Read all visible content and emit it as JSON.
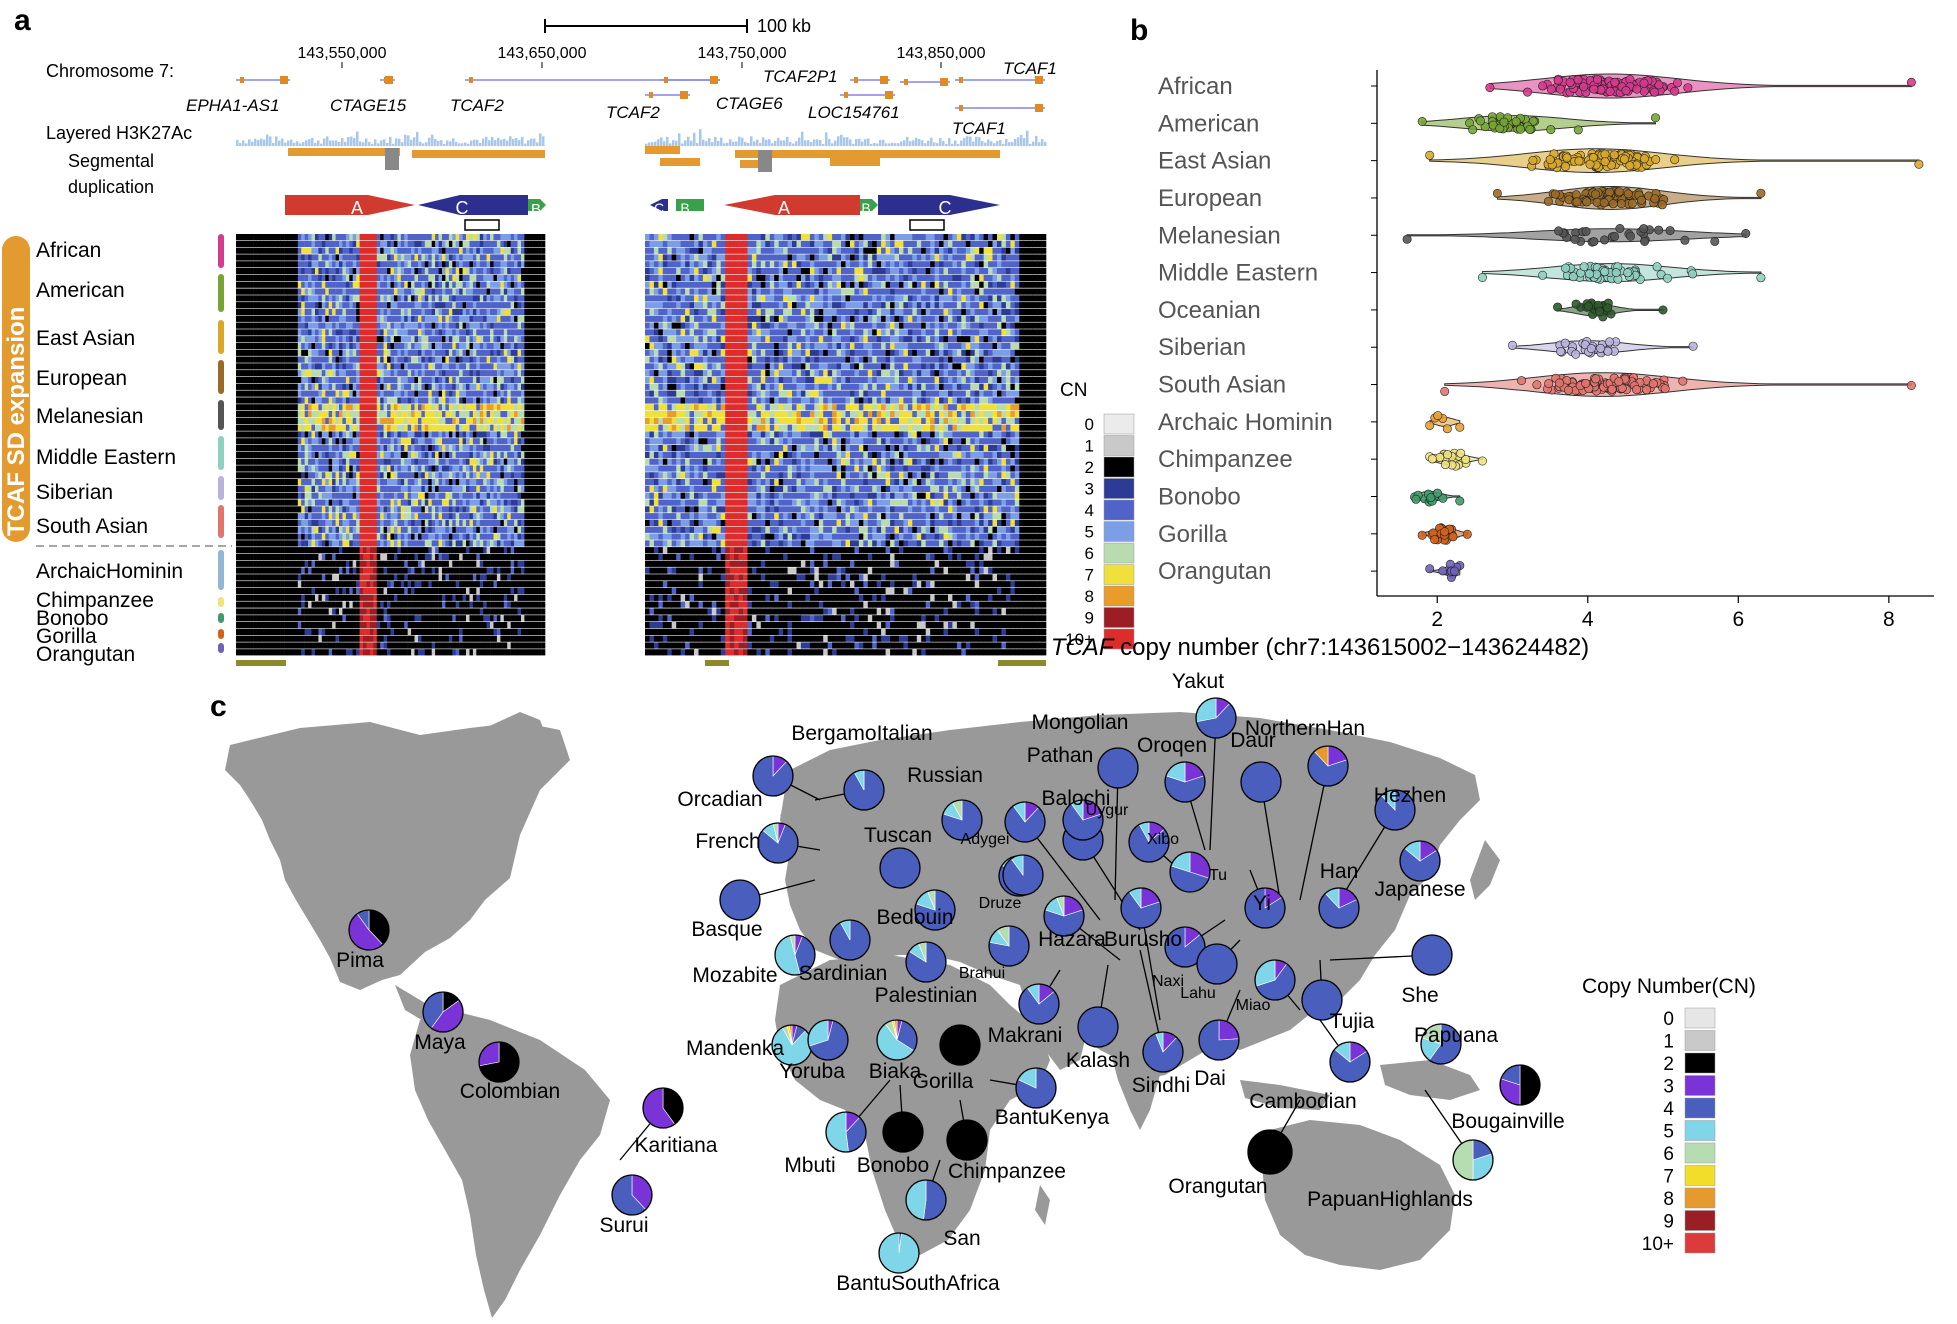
{
  "panel_labels": {
    "a": "a",
    "b": "b",
    "c": "c"
  },
  "panel_a": {
    "scale_bar": "100 kb",
    "chromosome_label": "Chromosome 7:",
    "coordinates": [
      "143,550,000",
      "143,650,000",
      "143,750,000",
      "143,850,000"
    ],
    "genes": [
      "EPHA1-AS1",
      "CTAGE15",
      "TCAF2",
      "TCAF2",
      "TCAF2P1",
      "CTAGE6",
      "LOC154761",
      "TCAF1",
      "TCAF1"
    ],
    "tracks": [
      "Layered H3K27Ac",
      "Segmental",
      "duplication"
    ],
    "sd_letters_left": [
      "A",
      "C",
      "B"
    ],
    "sd_letters_right": [
      "C",
      "B",
      "A",
      "B",
      "C"
    ],
    "side_label": "TCAF SD expansion",
    "groups": [
      "African",
      "American",
      "East Asian",
      "European",
      "Melanesian",
      "Middle Eastern",
      "Siberian",
      "South Asian",
      "ArchaicHominin",
      "Chimpanzee",
      "Bonobo",
      "Gorilla",
      "Orangutan"
    ],
    "group_colors": [
      "#d63a8e",
      "#76a534",
      "#d9a82a",
      "#9a6a26",
      "#555555",
      "#8fd0c0",
      "#b9b3dc",
      "#e2746e",
      "#93b6d4",
      "#f0e27f",
      "#3f9b6a",
      "#d2631e",
      "#6f63b5"
    ],
    "cn_title": "CN",
    "cn_labels": [
      "0",
      "1",
      "2",
      "3",
      "4",
      "5",
      "6",
      "7",
      "8",
      "9",
      "10+"
    ],
    "cn_colors": [
      "#ebebeb",
      "#c9c9c9",
      "#000000",
      "#2c3c94",
      "#4f63c8",
      "#7c9ee6",
      "#b8dcb0",
      "#f0e03c",
      "#e89c2c",
      "#9a1e24",
      "#dd2c2c"
    ]
  },
  "chart_data": {
    "type": "scatter",
    "subtype": "violin-jitter",
    "xlabel": "TCAF copy number (chr7:143615002−143624482)",
    "xlabel_italic": "TCAF",
    "xlabel_rest": " copy number (chr7:143615002−143624482)",
    "xticks": [
      2,
      4,
      6,
      8
    ],
    "xlim": [
      1.2,
      8.6
    ],
    "grid": false,
    "categories": [
      "African",
      "American",
      "East Asian",
      "European",
      "Melanesian",
      "Middle Eastern",
      "Oceanian",
      "Siberian",
      "South Asian",
      "Archaic Hominin",
      "Chimpanzee",
      "Bonobo",
      "Gorilla",
      "Orangutan"
    ],
    "series": [
      {
        "name": "African",
        "color": "#d63a8e",
        "min": 2.7,
        "max": 8.3,
        "median": 4.3,
        "spread": 0.9,
        "n": 110
      },
      {
        "name": "American",
        "color": "#76a534",
        "min": 1.8,
        "max": 4.9,
        "median": 3.0,
        "spread": 0.7,
        "n": 45
      },
      {
        "name": "East Asian",
        "color": "#d9a82a",
        "min": 1.9,
        "max": 8.4,
        "median": 4.1,
        "spread": 0.9,
        "n": 95
      },
      {
        "name": "European",
        "color": "#9a6a26",
        "min": 2.8,
        "max": 6.3,
        "median": 4.3,
        "spread": 0.7,
        "n": 90
      },
      {
        "name": "Melanesian",
        "color": "#555555",
        "min": 1.6,
        "max": 6.1,
        "median": 4.3,
        "spread": 1.0,
        "n": 30
      },
      {
        "name": "Middle Eastern",
        "color": "#8fd0c0",
        "min": 2.6,
        "max": 6.3,
        "median": 4.3,
        "spread": 0.8,
        "n": 60
      },
      {
        "name": "Oceanian",
        "color": "#2d5a2a",
        "min": 3.6,
        "max": 5.0,
        "median": 4.1,
        "spread": 0.25,
        "n": 25
      },
      {
        "name": "Siberian",
        "color": "#b9b3dc",
        "min": 3.0,
        "max": 5.4,
        "median": 4.0,
        "spread": 0.5,
        "n": 30
      },
      {
        "name": "South Asian",
        "color": "#e2746e",
        "min": 2.1,
        "max": 8.3,
        "median": 4.2,
        "spread": 0.9,
        "n": 95
      },
      {
        "name": "Archaic Hominin",
        "color": "#e7a034",
        "min": 1.9,
        "max": 2.3,
        "median": 2.1,
        "spread": 0.12,
        "n": 6
      },
      {
        "name": "Chimpanzee",
        "color": "#f0e27f",
        "min": 1.9,
        "max": 2.6,
        "median": 2.2,
        "spread": 0.18,
        "n": 25
      },
      {
        "name": "Bonobo",
        "color": "#3f9b6a",
        "min": 1.7,
        "max": 2.3,
        "median": 1.9,
        "spread": 0.15,
        "n": 13
      },
      {
        "name": "Gorilla",
        "color": "#d2631e",
        "min": 1.8,
        "max": 2.4,
        "median": 2.1,
        "spread": 0.15,
        "n": 30
      },
      {
        "name": "Orangutan",
        "color": "#6f63b5",
        "min": 1.9,
        "max": 2.3,
        "median": 2.2,
        "spread": 0.12,
        "n": 12
      }
    ]
  },
  "panel_c": {
    "legend_title": "Copy Number(CN)",
    "legend_labels": [
      "0",
      "1",
      "2",
      "3",
      "4",
      "5",
      "6",
      "7",
      "8",
      "9",
      "10+"
    ],
    "legend_colors": [
      "#e6e6e6",
      "#c9c9c9",
      "#000000",
      "#7a33d6",
      "#4a5fbd",
      "#7fd6e8",
      "#b6dcb2",
      "#f2de2a",
      "#e69a2c",
      "#9a1e24",
      "#dd3b3b"
    ],
    "populations": [
      {
        "name": "Pima",
        "cn": [
          0,
          0,
          0.38,
          0.52,
          0.1,
          0,
          0,
          0,
          0,
          0,
          0
        ]
      },
      {
        "name": "Maya",
        "cn": [
          0,
          0,
          0.15,
          0.45,
          0.4,
          0,
          0,
          0,
          0,
          0,
          0
        ]
      },
      {
        "name": "Colombian",
        "cn": [
          0,
          0,
          0.72,
          0.28,
          0,
          0,
          0,
          0,
          0,
          0,
          0
        ]
      },
      {
        "name": "Karitiana",
        "cn": [
          0,
          0,
          0.4,
          0.6,
          0,
          0,
          0,
          0,
          0,
          0,
          0
        ]
      },
      {
        "name": "Surui",
        "cn": [
          0,
          0,
          0,
          0.38,
          0.62,
          0,
          0,
          0,
          0,
          0,
          0
        ]
      },
      {
        "name": "Orcadian",
        "cn": [
          0,
          0,
          0,
          0.12,
          0.88,
          0,
          0,
          0,
          0,
          0,
          0
        ]
      },
      {
        "name": "BergamoItalian",
        "cn": [
          0,
          0,
          0,
          0,
          0.92,
          0.08,
          0,
          0,
          0,
          0,
          0
        ]
      },
      {
        "name": "French",
        "cn": [
          0,
          0,
          0,
          0.06,
          0.8,
          0.1,
          0.04,
          0,
          0,
          0,
          0
        ]
      },
      {
        "name": "Russian",
        "cn": [
          0,
          0,
          0,
          0,
          0.8,
          0.12,
          0.08,
          0,
          0,
          0,
          0
        ]
      },
      {
        "name": "Tuscan",
        "cn": [
          0,
          0,
          0,
          0,
          1.0,
          0,
          0,
          0,
          0,
          0,
          0
        ]
      },
      {
        "name": "Basque",
        "cn": [
          0,
          0,
          0,
          0,
          1.0,
          0,
          0,
          0,
          0,
          0,
          0
        ]
      },
      {
        "name": "Adygei",
        "cn": [
          0,
          0,
          0,
          0,
          0.84,
          0.1,
          0.06,
          0,
          0,
          0,
          0
        ]
      },
      {
        "name": "Bedouin",
        "cn": [
          0,
          0,
          0,
          0,
          0.8,
          0.14,
          0.06,
          0,
          0,
          0,
          0
        ]
      },
      {
        "name": "Sardinian",
        "cn": [
          0,
          0,
          0,
          0,
          0.92,
          0.08,
          0,
          0,
          0,
          0,
          0
        ]
      },
      {
        "name": "Mozabite",
        "cn": [
          0,
          0,
          0,
          0.06,
          0.4,
          0.5,
          0.04,
          0,
          0,
          0,
          0
        ]
      },
      {
        "name": "Palestinian",
        "cn": [
          0,
          0,
          0,
          0,
          0.84,
          0.1,
          0.06,
          0,
          0,
          0,
          0
        ]
      },
      {
        "name": "Mandenka",
        "cn": [
          0,
          0,
          0,
          0.04,
          0.08,
          0.8,
          0.04,
          0.02,
          0.02,
          0,
          0
        ]
      },
      {
        "name": "Yoruba",
        "cn": [
          0,
          0,
          0,
          0.04,
          0.66,
          0.3,
          0,
          0,
          0,
          0,
          0
        ]
      },
      {
        "name": "Biaka",
        "cn": [
          0,
          0,
          0,
          0.04,
          0.3,
          0.56,
          0.06,
          0.02,
          0.02,
          0,
          0
        ]
      },
      {
        "name": "Gorilla",
        "cn": [
          0,
          0,
          1.0,
          0,
          0,
          0,
          0,
          0,
          0,
          0,
          0
        ]
      },
      {
        "name": "Bonobo",
        "cn": [
          0,
          0,
          1.0,
          0,
          0,
          0,
          0,
          0,
          0,
          0,
          0
        ]
      },
      {
        "name": "Chimpanzee",
        "cn": [
          0,
          0,
          1.0,
          0,
          0,
          0,
          0,
          0,
          0,
          0,
          0
        ]
      },
      {
        "name": "Mbuti",
        "cn": [
          0,
          0,
          0,
          0.12,
          0.36,
          0.52,
          0,
          0,
          0,
          0,
          0
        ]
      },
      {
        "name": "San",
        "cn": [
          0,
          0,
          0,
          0,
          0.52,
          0.48,
          0,
          0,
          0,
          0,
          0
        ]
      },
      {
        "name": "BantuSouthAfrica",
        "cn": [
          0,
          0,
          0,
          0,
          0.02,
          0.98,
          0,
          0,
          0,
          0,
          0
        ]
      },
      {
        "name": "BantuKenya",
        "cn": [
          0,
          0,
          0,
          0,
          0.82,
          0.18,
          0,
          0,
          0,
          0,
          0
        ]
      },
      {
        "name": "Druze",
        "cn": [
          0,
          0,
          0,
          0,
          0.9,
          0.1,
          0,
          0,
          0,
          0,
          0
        ]
      },
      {
        "name": "Brahui",
        "cn": [
          0,
          0,
          0,
          0,
          0.78,
          0.12,
          0.1,
          0,
          0,
          0,
          0
        ]
      },
      {
        "name": "Makrani",
        "cn": [
          0,
          0,
          0,
          0.14,
          0.76,
          0.1,
          0,
          0,
          0,
          0,
          0
        ]
      },
      {
        "name": "Balochi",
        "cn": [
          0,
          0,
          0,
          0.12,
          0.78,
          0.1,
          0,
          0,
          0,
          0,
          0
        ]
      },
      {
        "name": "Hazara",
        "cn": [
          0,
          0,
          0,
          0.2,
          0.6,
          0.14,
          0.06,
          0,
          0,
          0,
          0
        ]
      },
      {
        "name": "Kalash",
        "cn": [
          0,
          0,
          0,
          0,
          1.0,
          0,
          0,
          0,
          0,
          0,
          0
        ]
      },
      {
        "name": "Pathan",
        "cn": [
          0,
          0,
          0,
          0.08,
          0.8,
          0.08,
          0.04,
          0,
          0,
          0,
          0
        ]
      },
      {
        "name": "Burusho",
        "cn": [
          0,
          0,
          0,
          0.2,
          0.7,
          0.1,
          0,
          0,
          0,
          0,
          0
        ]
      },
      {
        "name": "Sindhi",
        "cn": [
          0,
          0,
          0,
          0.12,
          0.82,
          0.06,
          0,
          0,
          0,
          0,
          0
        ]
      },
      {
        "name": "Uygur",
        "cn": [
          0,
          0,
          0,
          0.2,
          0.7,
          0.1,
          0,
          0,
          0,
          0,
          0
        ]
      },
      {
        "name": "Mongolian",
        "cn": [
          0,
          0,
          0,
          0,
          1.0,
          0,
          0,
          0,
          0,
          0,
          0
        ]
      },
      {
        "name": "Oroqen",
        "cn": [
          0,
          0,
          0,
          0.2,
          0.6,
          0.2,
          0,
          0,
          0,
          0,
          0
        ]
      },
      {
        "name": "Xibo",
        "cn": [
          0,
          0,
          0,
          0.14,
          0.78,
          0.08,
          0,
          0,
          0,
          0,
          0
        ]
      },
      {
        "name": "Tu",
        "cn": [
          0,
          0,
          0,
          0.3,
          0.5,
          0.2,
          0,
          0,
          0,
          0,
          0
        ]
      },
      {
        "name": "Yakut",
        "cn": [
          0,
          0,
          0,
          0.12,
          0.6,
          0.28,
          0,
          0,
          0,
          0,
          0
        ]
      },
      {
        "name": "Daur",
        "cn": [
          0,
          0,
          0,
          0,
          1.0,
          0,
          0,
          0,
          0,
          0,
          0
        ]
      },
      {
        "name": "NorthernHan",
        "cn": [
          0,
          0,
          0,
          0.2,
          0.68,
          0,
          0,
          0,
          0.12,
          0,
          0
        ]
      },
      {
        "name": "Hezhen",
        "cn": [
          0,
          0,
          0,
          0,
          0.88,
          0.12,
          0,
          0,
          0,
          0,
          0
        ]
      },
      {
        "name": "Han",
        "cn": [
          0,
          0,
          0,
          0.18,
          0.7,
          0.12,
          0,
          0,
          0,
          0,
          0
        ]
      },
      {
        "name": "Japanese",
        "cn": [
          0,
          0,
          0,
          0.16,
          0.7,
          0.14,
          0,
          0,
          0,
          0,
          0
        ]
      },
      {
        "name": "Yi",
        "cn": [
          0,
          0,
          0,
          0.16,
          0.84,
          0,
          0,
          0,
          0,
          0,
          0
        ]
      },
      {
        "name": "Naxi",
        "cn": [
          0,
          0,
          0,
          0.14,
          0.86,
          0,
          0,
          0,
          0,
          0,
          0
        ]
      },
      {
        "name": "Lahu",
        "cn": [
          0,
          0,
          0,
          0,
          1.0,
          0,
          0,
          0,
          0,
          0,
          0
        ]
      },
      {
        "name": "Miao",
        "cn": [
          0,
          0,
          0,
          0.1,
          0.6,
          0.3,
          0,
          0,
          0,
          0,
          0
        ]
      },
      {
        "name": "Tujia",
        "cn": [
          0,
          0,
          0,
          0,
          1.0,
          0,
          0,
          0,
          0,
          0,
          0
        ]
      },
      {
        "name": "She",
        "cn": [
          0,
          0,
          0,
          0,
          1.0,
          0,
          0,
          0,
          0,
          0,
          0
        ]
      },
      {
        "name": "Dai",
        "cn": [
          0,
          0,
          0,
          0.24,
          0.76,
          0,
          0,
          0,
          0,
          0,
          0
        ]
      },
      {
        "name": "Cambodian",
        "cn": [
          0,
          0,
          0,
          0.16,
          0.7,
          0.14,
          0,
          0,
          0,
          0,
          0
        ]
      },
      {
        "name": "Orangutan",
        "cn": [
          0,
          0,
          1.0,
          0,
          0,
          0,
          0,
          0,
          0,
          0,
          0
        ]
      },
      {
        "name": "Papuana",
        "cn": [
          0,
          0,
          0,
          0,
          0.6,
          0.2,
          0.2,
          0,
          0,
          0,
          0
        ]
      },
      {
        "name": "PapuanHighlands",
        "cn": [
          0,
          0,
          0,
          0,
          0.2,
          0.3,
          0.5,
          0,
          0,
          0,
          0
        ]
      },
      {
        "name": "Bougainville",
        "cn": [
          0,
          0,
          0.5,
          0.3,
          0.2,
          0,
          0,
          0,
          0,
          0,
          0
        ]
      }
    ]
  }
}
